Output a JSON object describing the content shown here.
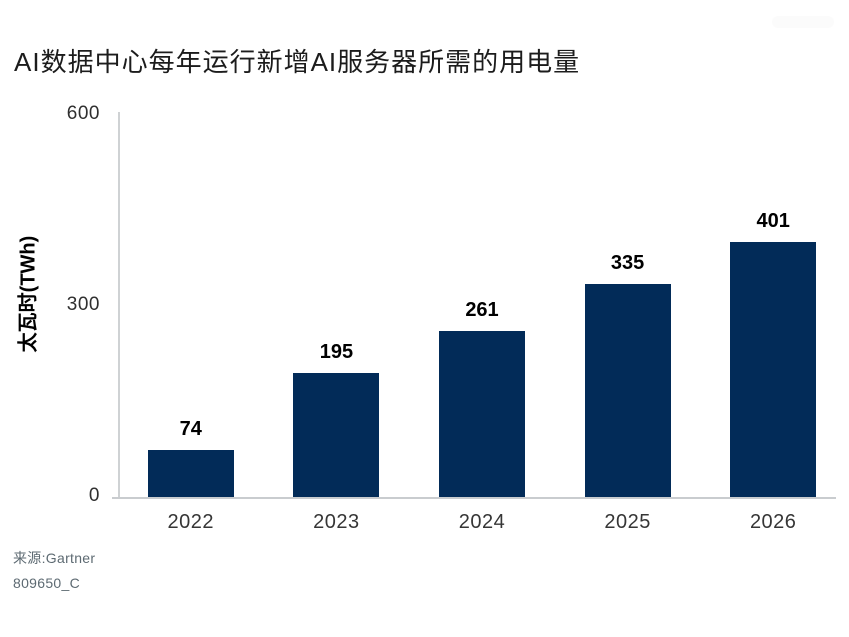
{
  "chart_data": {
    "type": "bar",
    "title": "AI数据中心每年运行新增AI服务器所需的用电量",
    "categories": [
      "2022",
      "2023",
      "2024",
      "2025",
      "2026"
    ],
    "values": [
      74,
      195,
      261,
      335,
      401
    ],
    "xlabel": "",
    "ylabel": "太瓦时(TWh)",
    "ylim": [
      0,
      600
    ],
    "yticks": [
      0,
      300,
      600
    ],
    "bar_color": "#022b58",
    "axis_line_color": "#cdd0d3",
    "grid": false,
    "legend": "none",
    "value_labels_shown": true
  },
  "footer": {
    "source": "来源:Gartner",
    "doc_id": "809650_C"
  }
}
